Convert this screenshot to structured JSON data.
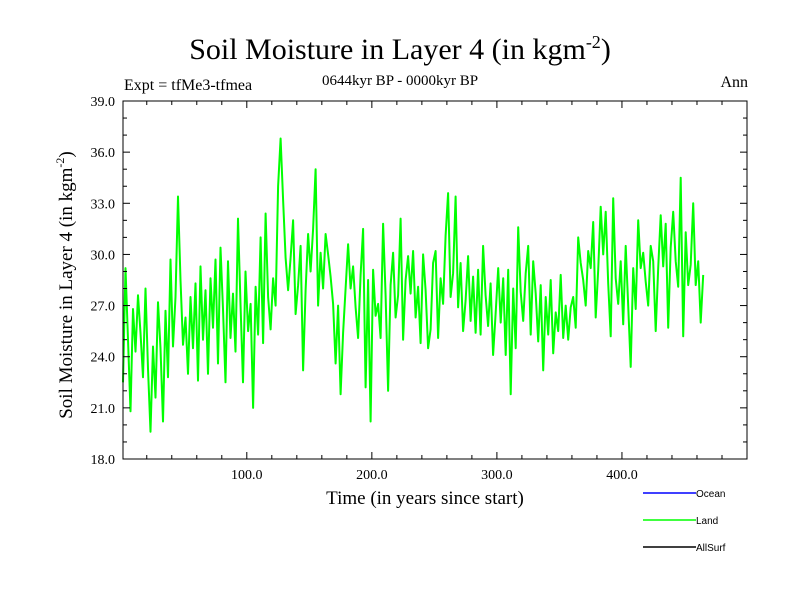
{
  "title": {
    "main": "Soil Moisture in Layer 4 (in kgm",
    "sup": "-2",
    "close": ")"
  },
  "subtitle": "0644kyr BP - 0000kyr BP",
  "expt_label": "Expt = tfMe3-tfmea",
  "season_label": "Ann",
  "chart_data": {
    "type": "line",
    "xlabel": "Time (in years since start)",
    "ylabel": {
      "main": "Soil Moisture in Layer 4 (in kgm",
      "sup": "-2",
      "close": ")"
    },
    "xlim": [
      1,
      500
    ],
    "ylim": [
      18.0,
      39.0
    ],
    "x_ticks": [
      100,
      200,
      300,
      400
    ],
    "x_tick_labels": [
      "100.0",
      "200.0",
      "300.0",
      "400.0"
    ],
    "y_ticks": [
      18,
      21,
      24,
      27,
      30,
      33,
      36,
      39
    ],
    "y_tick_labels": [
      "18.0",
      "21.0",
      "24.0",
      "27.0",
      "30.0",
      "33.0",
      "36.0",
      "39.0"
    ],
    "x_start": 1,
    "x_step": 2,
    "series": [
      {
        "name": "Ocean",
        "color": "#0000ff",
        "values": []
      },
      {
        "name": "Land",
        "color": "#00ff00",
        "values": [
          22.5,
          29.2,
          25.0,
          20.8,
          26.8,
          24.3,
          27.6,
          25.4,
          22.8,
          28.0,
          23.3,
          19.6,
          24.6,
          21.6,
          27.2,
          24.5,
          20.2,
          26.7,
          22.8,
          29.7,
          24.6,
          27.5,
          33.4,
          28.5,
          24.7,
          26.3,
          23.0,
          27.5,
          24.5,
          28.3,
          22.6,
          29.3,
          25.0,
          27.9,
          23.0,
          28.6,
          25.7,
          29.7,
          23.6,
          30.4,
          26.8,
          22.5,
          29.6,
          25.1,
          27.7,
          24.3,
          32.1,
          27.1,
          22.5,
          29.0,
          25.5,
          27.1,
          21.0,
          28.1,
          25.3,
          31.0,
          24.8,
          32.4,
          27.5,
          25.6,
          28.6,
          27.0,
          34.0,
          36.8,
          33.2,
          29.8,
          27.9,
          29.8,
          32.0,
          26.5,
          28.2,
          30.5,
          23.2,
          27.9,
          31.2,
          29.0,
          31.5,
          35.0,
          27.0,
          30.1,
          28.0,
          31.2,
          30.0,
          28.7,
          27.1,
          23.6,
          27.0,
          21.8,
          25.4,
          28.0,
          30.6,
          28.0,
          29.3,
          26.9,
          25.1,
          28.8,
          31.5,
          22.2,
          28.5,
          20.2,
          29.1,
          26.4,
          27.1,
          25.1,
          31.8,
          27.6,
          22.0,
          28.2,
          30.1,
          26.3,
          27.6,
          32.1,
          25.0,
          28.5,
          29.9,
          27.7,
          30.2,
          26.3,
          28.1,
          24.8,
          30.0,
          27.9,
          24.5,
          25.6,
          29.5,
          30.2,
          25.1,
          28.6,
          27.1,
          31.1,
          33.6,
          27.5,
          28.9,
          33.4,
          26.9,
          29.5,
          25.5,
          27.3,
          29.9,
          26.1,
          28.7,
          25.4,
          29.1,
          25.3,
          30.5,
          27.6,
          25.8,
          28.3,
          24.1,
          26.5,
          29.2,
          26.0,
          28.6,
          24.1,
          29.1,
          21.8,
          28.0,
          24.5,
          31.6,
          27.8,
          26.1,
          28.9,
          30.5,
          25.3,
          29.6,
          27.7,
          24.9,
          28.2,
          23.2,
          27.5,
          25.3,
          28.5,
          24.2,
          26.6,
          25.5,
          28.8,
          25.1,
          27.0,
          25.0,
          26.9,
          27.5,
          25.7,
          31.0,
          29.5,
          28.5,
          27.0,
          30.2,
          29.2,
          31.9,
          26.3,
          29.1,
          32.8,
          30.0,
          32.5,
          28.3,
          25.2,
          33.3,
          28.6,
          27.1,
          29.6,
          25.9,
          30.5,
          27.0,
          23.4,
          29.2,
          26.8,
          32.0,
          29.2,
          30.1,
          28.4,
          27.0,
          30.5,
          29.6,
          25.5,
          29.2,
          32.3,
          29.3,
          31.8,
          25.7,
          30.4,
          32.5,
          29.6,
          28.1,
          34.5,
          25.2,
          31.3,
          28.2,
          29.4,
          33.0,
          28.2,
          29.6,
          26.0,
          28.8
        ]
      },
      {
        "name": "AllSurf",
        "color": "#000000",
        "values": []
      }
    ],
    "legend_position": "bottom-right",
    "grid": false
  }
}
